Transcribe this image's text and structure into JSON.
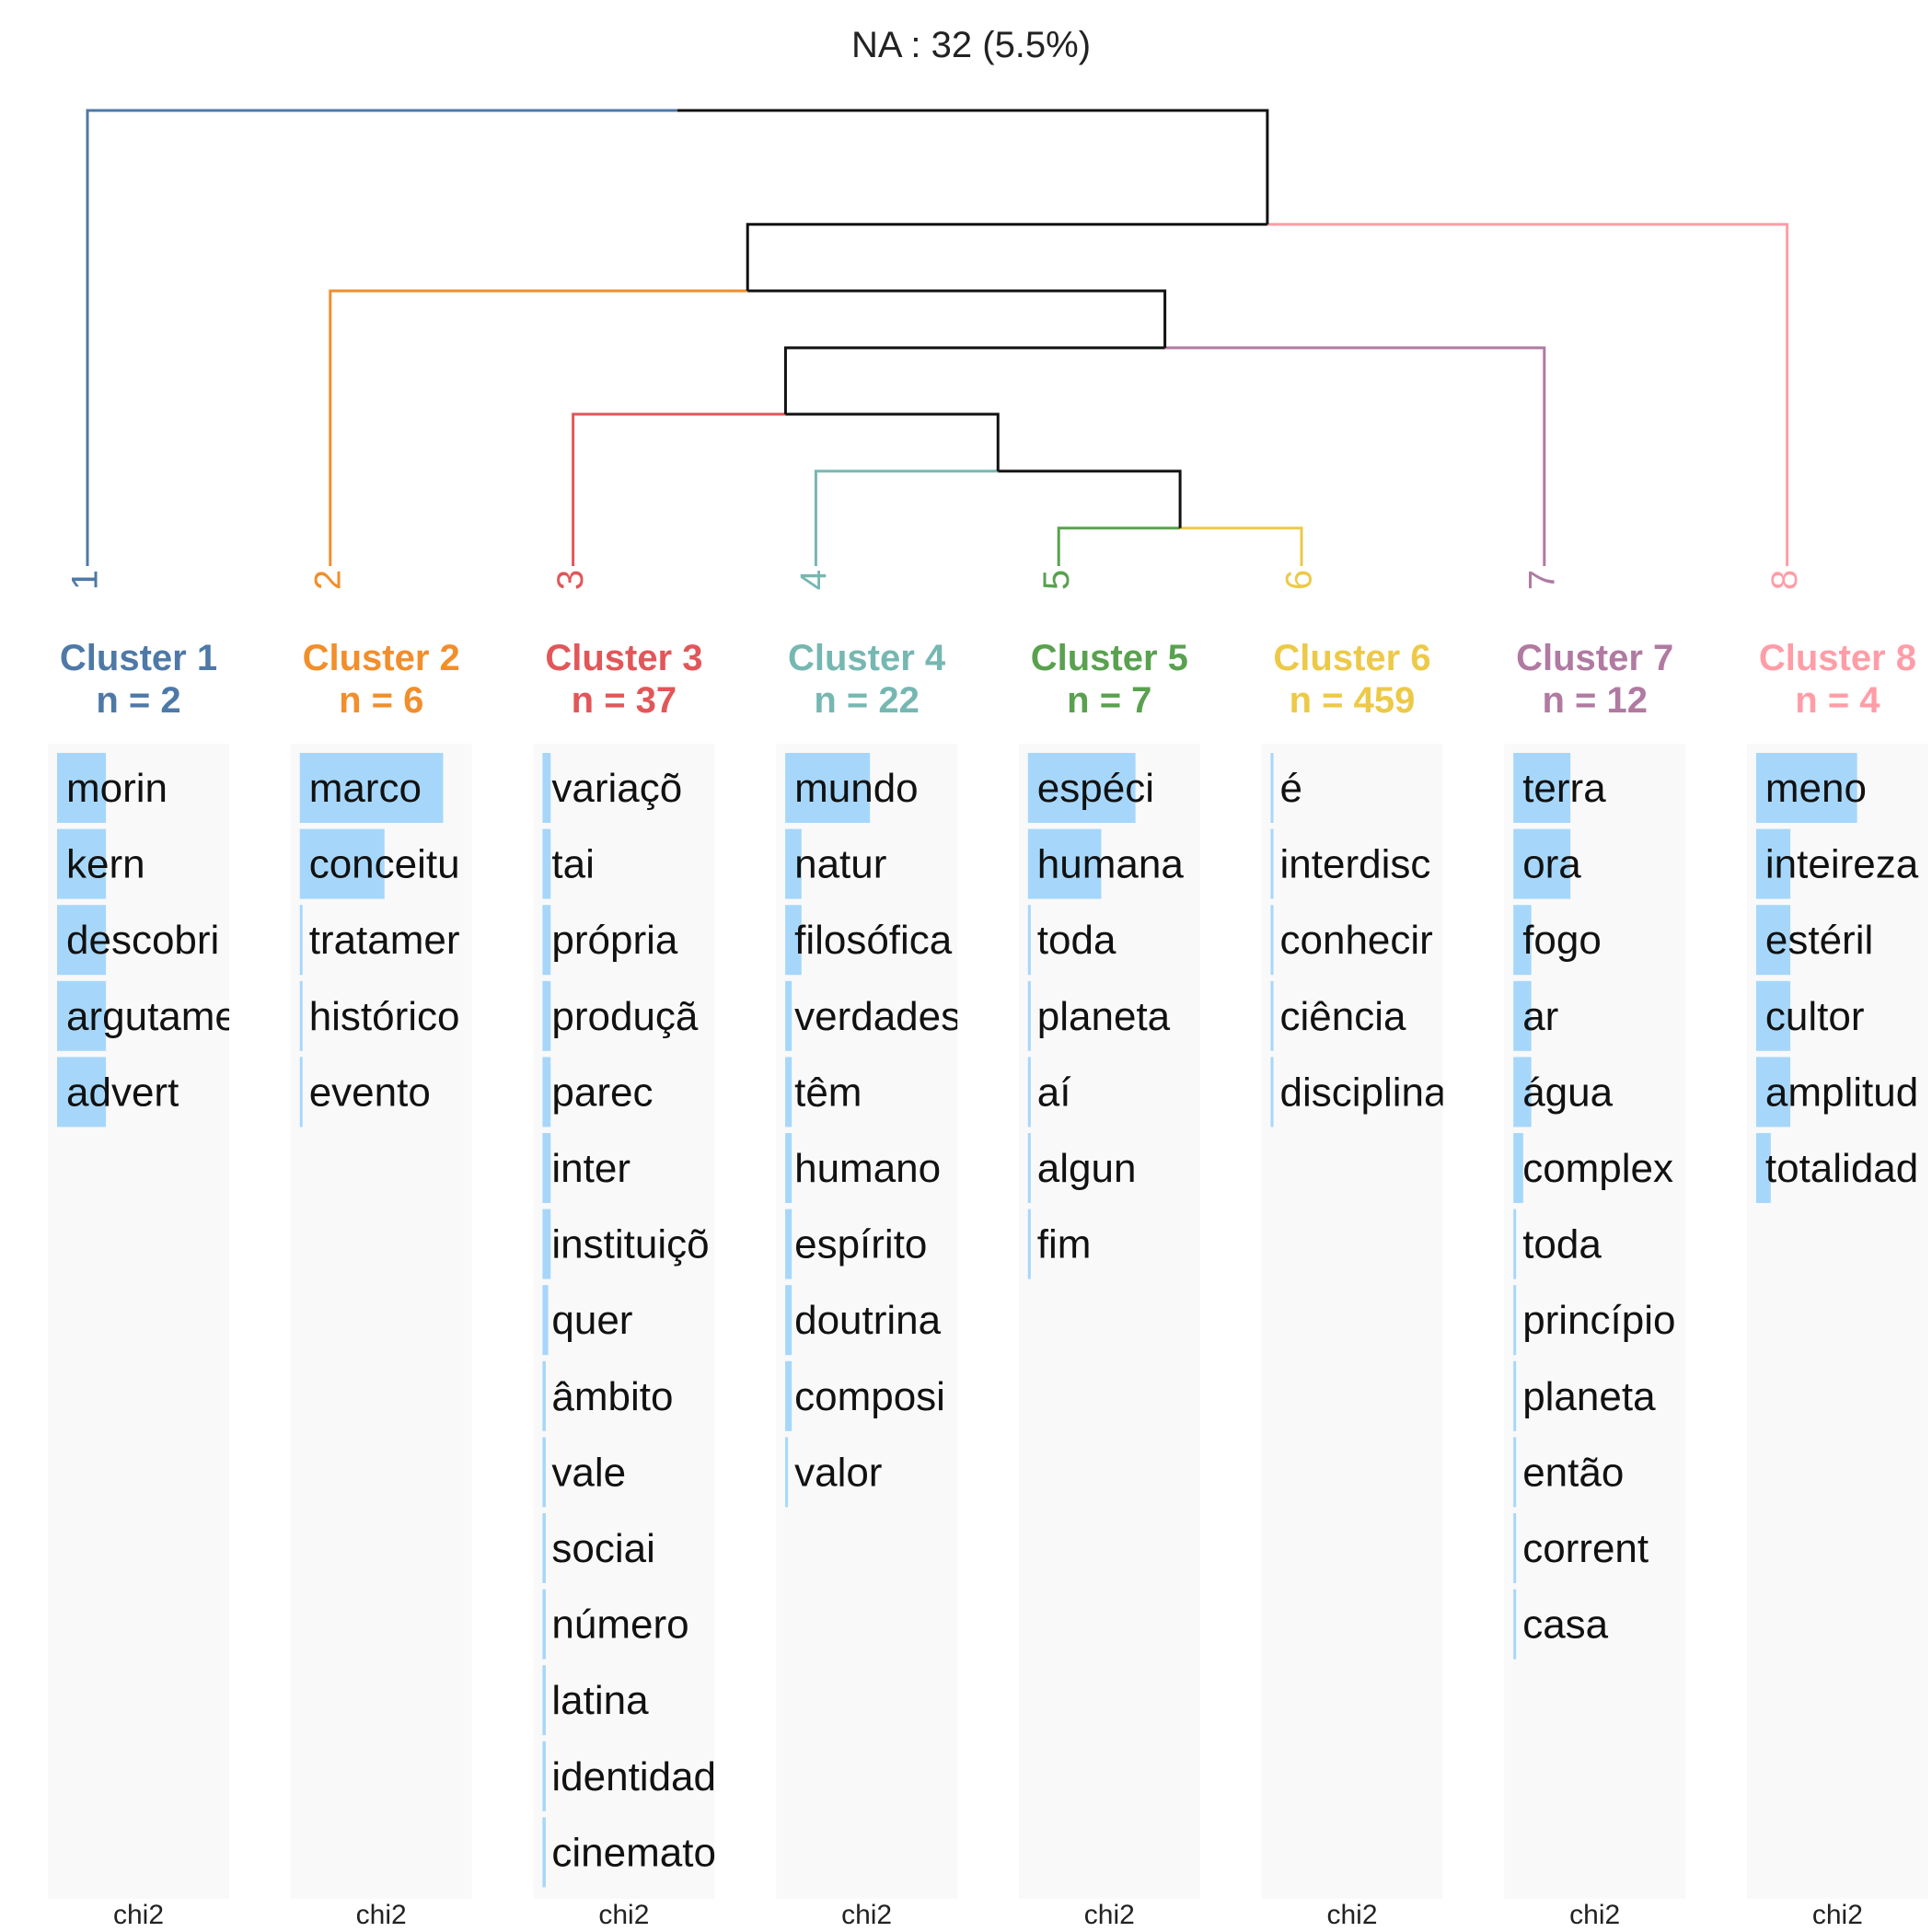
{
  "title": "NA : 32 (5.5%)",
  "chart_data": {
    "type": "bar",
    "description_kind": "dendrogram-with-chi2-bars",
    "title": "NA : 32 (5.5%)",
    "dendrogram": {
      "leaves": [
        "1",
        "2",
        "3",
        "4",
        "5",
        "6",
        "7",
        "8"
      ],
      "merges": [
        {
          "left": "5",
          "right": "6",
          "height": 0.04
        },
        {
          "left": "4",
          "right": "5-6",
          "height": 0.1
        },
        {
          "left": "3",
          "right": "4-5-6",
          "height": 0.16
        },
        {
          "left": "3-4-5-6",
          "right": "7",
          "height": 0.23
        },
        {
          "left": "2",
          "right": "3-4-5-6-7",
          "height": 0.29
        },
        {
          "left": "2-3-4-5-6-7",
          "right": "8",
          "height": 0.36
        },
        {
          "left": "1",
          "right": "2-3-4-5-6-7-8",
          "height": 0.48
        }
      ]
    },
    "xlabel": "chi2",
    "clusters": [
      {
        "label": "Cluster 1",
        "n_label": "n = 2",
        "leaf": "1",
        "color": "#4E79A7",
        "words": [
          "morin",
          "kern",
          "descobri",
          "argutame",
          "advert"
        ],
        "values": [
          0.3,
          0.3,
          0.3,
          0.3,
          0.3
        ]
      },
      {
        "label": "Cluster 2",
        "n_label": "n = 6",
        "leaf": "2",
        "color": "#F28E2B",
        "words": [
          "marco",
          "conceitu",
          "tratamer",
          "histórico",
          "evento"
        ],
        "values": [
          0.88,
          0.52,
          0.012,
          0.012,
          0.012
        ]
      },
      {
        "label": "Cluster 3",
        "n_label": "n = 37",
        "leaf": "3",
        "color": "#E15759",
        "words": [
          "variaçõ",
          "tai",
          "própria",
          "produçã",
          "parec",
          "inter",
          "instituiçõ",
          "quer",
          "âmbito",
          "vale",
          "sociai",
          "número",
          "latina",
          "identidad",
          "cinemato"
        ],
        "values": [
          0.05,
          0.05,
          0.05,
          0.05,
          0.05,
          0.05,
          0.05,
          0.035,
          0.02,
          0.02,
          0.02,
          0.02,
          0.02,
          0.02,
          0.02
        ]
      },
      {
        "label": "Cluster 4",
        "n_label": "n = 22",
        "leaf": "4",
        "color": "#76B7B2",
        "words": [
          "mundo",
          "natur",
          "filosófica",
          "verdades",
          "têm",
          "humano",
          "espírito",
          "doutrina",
          "composi",
          "valor"
        ],
        "values": [
          0.52,
          0.1,
          0.1,
          0.04,
          0.04,
          0.04,
          0.04,
          0.04,
          0.04,
          0.015
        ]
      },
      {
        "label": "Cluster 5",
        "n_label": "n = 7",
        "leaf": "5",
        "color": "#59A14F",
        "words": [
          "espéci",
          "humana",
          "toda",
          "planeta",
          "aí",
          "algun",
          "fim"
        ],
        "values": [
          0.66,
          0.45,
          0.012,
          0.012,
          0.012,
          0.012,
          0.012
        ]
      },
      {
        "label": "Cluster 6",
        "n_label": "n = 459",
        "leaf": "6",
        "color": "#EDC948",
        "words": [
          "é",
          "interdisc",
          "conhecir",
          "ciência",
          "disciplina"
        ],
        "values": [
          0.015,
          0.012,
          0.012,
          0.012,
          0.012
        ]
      },
      {
        "label": "Cluster 7",
        "n_label": "n = 12",
        "leaf": "7",
        "color": "#B07AA1",
        "words": [
          "terra",
          "ora",
          "fogo",
          "ar",
          "água",
          "complex",
          "toda",
          "princípio",
          "planeta",
          "então",
          "corrent",
          "casa"
        ],
        "values": [
          0.35,
          0.35,
          0.11,
          0.11,
          0.11,
          0.06,
          0.015,
          0.015,
          0.015,
          0.015,
          0.015,
          0.015
        ]
      },
      {
        "label": "Cluster 8",
        "n_label": "n = 4",
        "leaf": "8",
        "color": "#FF9DA7",
        "words": [
          "meno",
          "inteireza",
          "estéril",
          "cultor",
          "amplitud",
          "totalidad"
        ],
        "values": [
          0.62,
          0.21,
          0.21,
          0.21,
          0.21,
          0.09
        ]
      }
    ]
  }
}
